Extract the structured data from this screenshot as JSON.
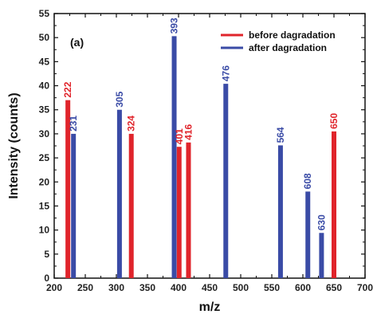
{
  "chart_data": {
    "type": "bar",
    "panel_label": "(a)",
    "xlabel": "m/z",
    "ylabel": "Intensity  (counts)",
    "xlim": [
      200,
      700
    ],
    "ylim": [
      0,
      55
    ],
    "xticks": [
      200,
      250,
      300,
      350,
      400,
      450,
      500,
      550,
      600,
      650,
      700
    ],
    "yticks": [
      0,
      5,
      10,
      15,
      20,
      25,
      30,
      35,
      40,
      45,
      50,
      55
    ],
    "legend_position": "top-right",
    "series": [
      {
        "name": "before dagradation",
        "color": "#e0242b",
        "points": [
          {
            "x": 222,
            "y": 37,
            "label": "222"
          },
          {
            "x": 324,
            "y": 30,
            "label": "324"
          },
          {
            "x": 401,
            "y": 27.3,
            "label": "401"
          },
          {
            "x": 416,
            "y": 28.2,
            "label": "416"
          },
          {
            "x": 650,
            "y": 30.5,
            "label": "650"
          }
        ]
      },
      {
        "name": "after dagradation",
        "color": "#3a4ba6",
        "points": [
          {
            "x": 231,
            "y": 30,
            "label": "231"
          },
          {
            "x": 305,
            "y": 35,
            "label": "305"
          },
          {
            "x": 393,
            "y": 50.3,
            "label": "393"
          },
          {
            "x": 476,
            "y": 40.4,
            "label": "476"
          },
          {
            "x": 564,
            "y": 27.6,
            "label": "564"
          },
          {
            "x": 608,
            "y": 18,
            "label": "608"
          },
          {
            "x": 630,
            "y": 9.4,
            "label": "630"
          }
        ]
      }
    ]
  }
}
